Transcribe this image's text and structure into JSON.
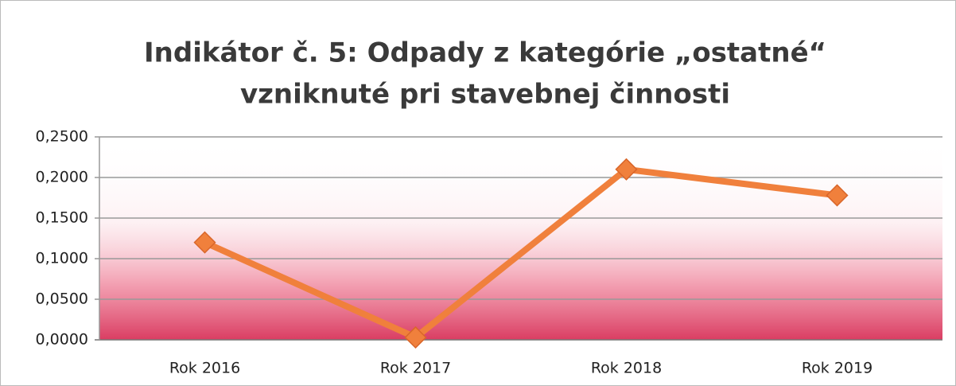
{
  "chart_data": {
    "type": "line",
    "title": [
      "Indikátor č. 5: Odpady z kategórie „ostatné“",
      "vzniknuté pri stavebnej činnosti"
    ],
    "categories": [
      "Rok 2016",
      "Rok 2017",
      "Rok 2018",
      "Rok 2019"
    ],
    "series": [
      {
        "name": "Indikátor č. 5",
        "color": "#f0803c",
        "values": [
          0.12,
          0.003,
          0.21,
          0.178
        ]
      }
    ],
    "ylim": [
      0,
      0.25
    ],
    "yticks": [
      {
        "value": 0,
        "label": "0,0000"
      },
      {
        "value": 0.05,
        "label": "0,0500"
      },
      {
        "value": 0.1,
        "label": "0,1000"
      },
      {
        "value": 0.15,
        "label": "0,1500"
      },
      {
        "value": 0.2,
        "label": "0,2000"
      },
      {
        "value": 0.25,
        "label": "0,2500"
      }
    ],
    "grid": true
  }
}
